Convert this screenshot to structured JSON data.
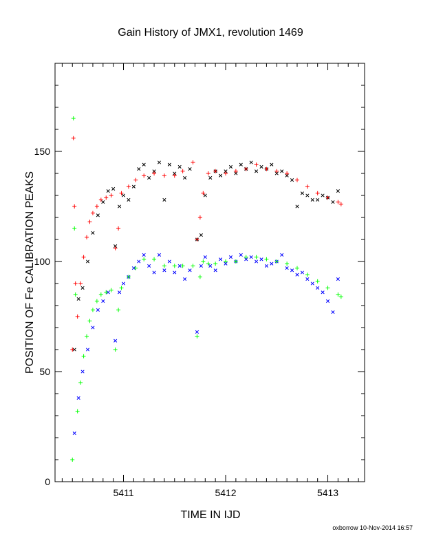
{
  "chart_data": {
    "type": "scatter",
    "title": "Gain History of JMX1, revolution 1469",
    "xlabel": "TIME IN IJD",
    "ylabel": "POSITION OF Fe CALIBRATION PEAKS",
    "xlim": [
      5410.33,
      5413.36
    ],
    "ylim": [
      0,
      190
    ],
    "x_ticks": [
      "5411",
      "5412",
      "5413"
    ],
    "y_ticks": [
      "0",
      "50",
      "100",
      "150"
    ],
    "grid": false,
    "legend": "none",
    "footer": "oxborrow 10-Nov-2014 16:57",
    "colors": {
      "raw_high": "#000000",
      "raw_low": "#0000ff",
      "fit_high": "#ff0000",
      "fit_low": "#00ff00"
    },
    "series": [
      {
        "marker": "x",
        "color": "#000000",
        "points": [
          [
            5410.52,
            60
          ],
          [
            5410.56,
            83
          ],
          [
            5410.6,
            88
          ],
          [
            5410.65,
            100
          ],
          [
            5410.7,
            113
          ],
          [
            5410.75,
            121
          ],
          [
            5410.8,
            127
          ],
          [
            5410.85,
            132
          ],
          [
            5410.9,
            133
          ],
          [
            5410.92,
            107
          ],
          [
            5410.96,
            125
          ],
          [
            5411.0,
            130
          ],
          [
            5411.05,
            128
          ],
          [
            5411.1,
            134
          ],
          [
            5411.15,
            142
          ],
          [
            5411.2,
            144
          ],
          [
            5411.25,
            138
          ],
          [
            5411.3,
            141
          ],
          [
            5411.35,
            145
          ],
          [
            5411.4,
            128
          ],
          [
            5411.45,
            144
          ],
          [
            5411.5,
            140
          ],
          [
            5411.55,
            143
          ],
          [
            5411.6,
            138
          ],
          [
            5411.65,
            142
          ],
          [
            5411.72,
            110
          ],
          [
            5411.76,
            112
          ],
          [
            5411.8,
            130
          ],
          [
            5411.85,
            138
          ],
          [
            5411.9,
            141
          ],
          [
            5411.95,
            139
          ],
          [
            5412.0,
            141
          ],
          [
            5412.05,
            143
          ],
          [
            5412.1,
            140
          ],
          [
            5412.15,
            144
          ],
          [
            5412.2,
            142
          ],
          [
            5412.25,
            145
          ],
          [
            5412.3,
            141
          ],
          [
            5412.35,
            143
          ],
          [
            5412.4,
            142
          ],
          [
            5412.45,
            144
          ],
          [
            5412.5,
            140
          ],
          [
            5412.55,
            141
          ],
          [
            5412.6,
            139
          ],
          [
            5412.65,
            137
          ],
          [
            5412.7,
            125
          ],
          [
            5412.75,
            131
          ],
          [
            5412.8,
            130
          ],
          [
            5412.85,
            128
          ],
          [
            5412.9,
            128
          ],
          [
            5412.95,
            130
          ],
          [
            5413.0,
            129
          ],
          [
            5413.05,
            127
          ],
          [
            5413.1,
            132
          ]
        ]
      },
      {
        "marker": "x",
        "color": "#0000ff",
        "points": [
          [
            5410.52,
            22
          ],
          [
            5410.56,
            38
          ],
          [
            5410.6,
            50
          ],
          [
            5410.65,
            60
          ],
          [
            5410.7,
            70
          ],
          [
            5410.75,
            78
          ],
          [
            5410.8,
            82
          ],
          [
            5410.85,
            86
          ],
          [
            5410.92,
            64
          ],
          [
            5410.96,
            86
          ],
          [
            5411.0,
            90
          ],
          [
            5411.05,
            93
          ],
          [
            5411.1,
            97
          ],
          [
            5411.15,
            100
          ],
          [
            5411.2,
            103
          ],
          [
            5411.25,
            98
          ],
          [
            5411.3,
            95
          ],
          [
            5411.35,
            103
          ],
          [
            5411.4,
            96
          ],
          [
            5411.45,
            100
          ],
          [
            5411.5,
            95
          ],
          [
            5411.55,
            98
          ],
          [
            5411.6,
            92
          ],
          [
            5411.65,
            96
          ],
          [
            5411.72,
            68
          ],
          [
            5411.76,
            98
          ],
          [
            5411.8,
            102
          ],
          [
            5411.85,
            98
          ],
          [
            5411.9,
            96
          ],
          [
            5411.95,
            101
          ],
          [
            5412.0,
            99
          ],
          [
            5412.05,
            102
          ],
          [
            5412.1,
            100
          ],
          [
            5412.15,
            103
          ],
          [
            5412.2,
            101
          ],
          [
            5412.25,
            102
          ],
          [
            5412.3,
            100
          ],
          [
            5412.35,
            101
          ],
          [
            5412.4,
            98
          ],
          [
            5412.45,
            99
          ],
          [
            5412.5,
            100
          ],
          [
            5412.55,
            103
          ],
          [
            5412.6,
            97
          ],
          [
            5412.65,
            96
          ],
          [
            5412.7,
            94
          ],
          [
            5412.75,
            95
          ],
          [
            5412.8,
            92
          ],
          [
            5412.85,
            90
          ],
          [
            5412.9,
            88
          ],
          [
            5412.95,
            86
          ],
          [
            5413.0,
            82
          ],
          [
            5413.05,
            77
          ],
          [
            5413.1,
            92
          ]
        ]
      },
      {
        "marker": "+",
        "color": "#ff0000",
        "points": [
          [
            5410.5,
            60
          ],
          [
            5410.51,
            156
          ],
          [
            5410.52,
            125
          ],
          [
            5410.53,
            90
          ],
          [
            5410.55,
            75
          ],
          [
            5410.58,
            90
          ],
          [
            5410.61,
            102
          ],
          [
            5410.64,
            111
          ],
          [
            5410.67,
            118
          ],
          [
            5410.7,
            122
          ],
          [
            5410.74,
            125
          ],
          [
            5410.78,
            128
          ],
          [
            5410.83,
            129
          ],
          [
            5410.88,
            130
          ],
          [
            5410.92,
            106
          ],
          [
            5410.95,
            115
          ],
          [
            5410.98,
            131
          ],
          [
            5411.05,
            134
          ],
          [
            5411.12,
            137
          ],
          [
            5411.2,
            139
          ],
          [
            5411.3,
            140
          ],
          [
            5411.4,
            139
          ],
          [
            5411.5,
            139
          ],
          [
            5411.58,
            141
          ],
          [
            5411.68,
            145
          ],
          [
            5411.72,
            110
          ],
          [
            5411.75,
            120
          ],
          [
            5411.78,
            131
          ],
          [
            5411.83,
            140
          ],
          [
            5411.9,
            141
          ],
          [
            5412.0,
            140
          ],
          [
            5412.1,
            141
          ],
          [
            5412.2,
            142
          ],
          [
            5412.3,
            144
          ],
          [
            5412.4,
            142
          ],
          [
            5412.5,
            141
          ],
          [
            5412.6,
            140
          ],
          [
            5412.7,
            137
          ],
          [
            5412.8,
            134
          ],
          [
            5412.9,
            131
          ],
          [
            5413.0,
            129
          ],
          [
            5413.1,
            127
          ],
          [
            5413.13,
            126
          ]
        ]
      },
      {
        "marker": "+",
        "color": "#00ff00",
        "points": [
          [
            5410.5,
            10
          ],
          [
            5410.51,
            165
          ],
          [
            5410.52,
            115
          ],
          [
            5410.53,
            85
          ],
          [
            5410.55,
            32
          ],
          [
            5410.58,
            45
          ],
          [
            5410.61,
            57
          ],
          [
            5410.64,
            66
          ],
          [
            5410.67,
            73
          ],
          [
            5410.7,
            78
          ],
          [
            5410.74,
            82
          ],
          [
            5410.78,
            85
          ],
          [
            5410.83,
            86
          ],
          [
            5410.88,
            87
          ],
          [
            5410.92,
            60
          ],
          [
            5410.95,
            78
          ],
          [
            5410.98,
            88
          ],
          [
            5411.05,
            93
          ],
          [
            5411.12,
            97
          ],
          [
            5411.2,
            101
          ],
          [
            5411.3,
            101
          ],
          [
            5411.4,
            98
          ],
          [
            5411.5,
            98
          ],
          [
            5411.58,
            98
          ],
          [
            5411.68,
            98
          ],
          [
            5411.72,
            66
          ],
          [
            5411.75,
            93
          ],
          [
            5411.78,
            100
          ],
          [
            5411.83,
            99
          ],
          [
            5411.9,
            99
          ],
          [
            5412.0,
            100
          ],
          [
            5412.1,
            100
          ],
          [
            5412.2,
            102
          ],
          [
            5412.3,
            102
          ],
          [
            5412.4,
            101
          ],
          [
            5412.5,
            100
          ],
          [
            5412.6,
            99
          ],
          [
            5412.7,
            97
          ],
          [
            5412.8,
            94
          ],
          [
            5412.9,
            91
          ],
          [
            5413.0,
            88
          ],
          [
            5413.1,
            85
          ],
          [
            5413.13,
            84
          ]
        ]
      }
    ]
  }
}
